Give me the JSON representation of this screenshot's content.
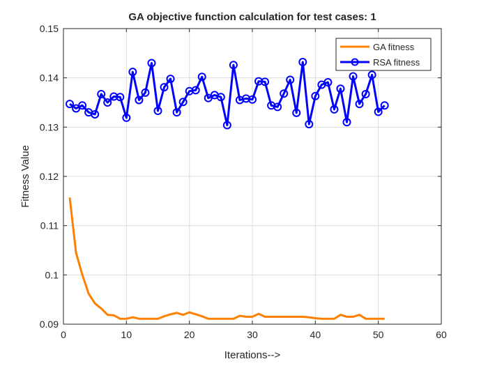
{
  "chart_data": {
    "type": "line",
    "title": "GA objective function calculation for test cases: 1",
    "xlabel": "Iterations-->",
    "ylabel": "Fitness Value",
    "xlim": [
      0,
      60
    ],
    "ylim": [
      0.09,
      0.15
    ],
    "xticks": [
      "0",
      "10",
      "20",
      "30",
      "40",
      "50",
      "60"
    ],
    "yticks": [
      "0.09",
      "0.1",
      "0.11",
      "0.12",
      "0.13",
      "0.14",
      "0.15"
    ],
    "grid": true,
    "legend_position": "top-right",
    "x": [
      1,
      2,
      3,
      4,
      5,
      6,
      7,
      8,
      9,
      10,
      11,
      12,
      13,
      14,
      15,
      16,
      17,
      18,
      19,
      20,
      21,
      22,
      23,
      24,
      25,
      26,
      27,
      28,
      29,
      30,
      31,
      32,
      33,
      34,
      35,
      36,
      37,
      38,
      39,
      40,
      41,
      42,
      43,
      44,
      45,
      46,
      47,
      48,
      49,
      50,
      51
    ],
    "series": [
      {
        "name": "GA fitness",
        "color": "#FF8000",
        "marker": "none",
        "values": [
          0.1157,
          0.1045,
          0.1,
          0.0962,
          0.0942,
          0.0932,
          0.0919,
          0.0918,
          0.0911,
          0.0911,
          0.0914,
          0.0911,
          0.0911,
          0.0911,
          0.0911,
          0.0916,
          0.092,
          0.0923,
          0.0919,
          0.0924,
          0.092,
          0.0916,
          0.0911,
          0.0911,
          0.0911,
          0.0911,
          0.0911,
          0.0917,
          0.0915,
          0.0915,
          0.0921,
          0.0915,
          0.0915,
          0.0915,
          0.0915,
          0.0915,
          0.0915,
          0.0915,
          0.0914,
          0.0912,
          0.0911,
          0.0911,
          0.0911,
          0.0919,
          0.0915,
          0.0915,
          0.0919,
          0.0911,
          0.0911,
          0.0911,
          0.0911
        ]
      },
      {
        "name": "RSA fitness",
        "color": "#0000FF",
        "marker": "circle",
        "values": [
          0.1347,
          0.1338,
          0.1344,
          0.133,
          0.1326,
          0.1367,
          0.135,
          0.1362,
          0.1361,
          0.1319,
          0.1412,
          0.1355,
          0.137,
          0.143,
          0.1333,
          0.1381,
          0.1398,
          0.133,
          0.1351,
          0.1373,
          0.1375,
          0.1402,
          0.1359,
          0.1365,
          0.1361,
          0.1304,
          0.1426,
          0.1355,
          0.1358,
          0.1356,
          0.1393,
          0.1392,
          0.1344,
          0.1341,
          0.1368,
          0.1396,
          0.1329,
          0.1432,
          0.1306,
          0.1363,
          0.1386,
          0.1391,
          0.1336,
          0.1378,
          0.131,
          0.1403,
          0.1347,
          0.1367,
          0.1406,
          0.1331,
          0.1344
        ]
      }
    ]
  }
}
